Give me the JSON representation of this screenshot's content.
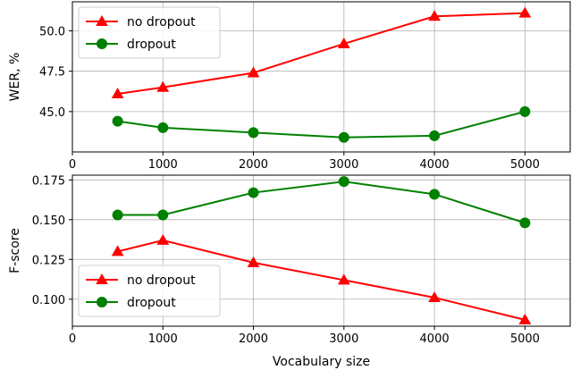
{
  "chart_data": [
    {
      "type": "line",
      "xlabel": "",
      "ylabel": "WER, %",
      "xlim": [
        0,
        5500
      ],
      "ylim": [
        42.5,
        51.8
      ],
      "xticks": [
        0,
        1000,
        2000,
        3000,
        4000,
        5000
      ],
      "yticks": [
        45.0,
        47.5,
        50.0
      ],
      "ytick_labels": [
        "45.0",
        "47.5",
        "50.0"
      ],
      "grid": true,
      "legend_position": "upper-left",
      "x": [
        500,
        1000,
        2000,
        3000,
        4000,
        5000
      ],
      "series": [
        {
          "name": "no dropout",
          "color": "#ff0000",
          "marker": "triangle",
          "values": [
            46.1,
            46.5,
            47.4,
            49.2,
            50.9,
            51.1
          ]
        },
        {
          "name": "dropout",
          "color": "#008000",
          "marker": "circle",
          "values": [
            44.4,
            44.0,
            43.7,
            43.4,
            43.5,
            45.0
          ]
        }
      ]
    },
    {
      "type": "line",
      "xlabel": "Vocabulary size",
      "ylabel": "F-score",
      "xlim": [
        0,
        5500
      ],
      "ylim": [
        0.083,
        0.178
      ],
      "xticks": [
        0,
        1000,
        2000,
        3000,
        4000,
        5000
      ],
      "yticks": [
        0.1,
        0.125,
        0.15,
        0.175
      ],
      "ytick_labels": [
        "0.100",
        "0.125",
        "0.150",
        "0.175"
      ],
      "grid": true,
      "legend_position": "lower-left",
      "x": [
        500,
        1000,
        2000,
        3000,
        4000,
        5000
      ],
      "series": [
        {
          "name": "no dropout",
          "color": "#ff0000",
          "marker": "triangle",
          "values": [
            0.13,
            0.137,
            0.123,
            0.112,
            0.101,
            0.087
          ]
        },
        {
          "name": "dropout",
          "color": "#008000",
          "marker": "circle",
          "values": [
            0.153,
            0.153,
            0.167,
            0.174,
            0.166,
            0.148
          ]
        }
      ]
    }
  ]
}
